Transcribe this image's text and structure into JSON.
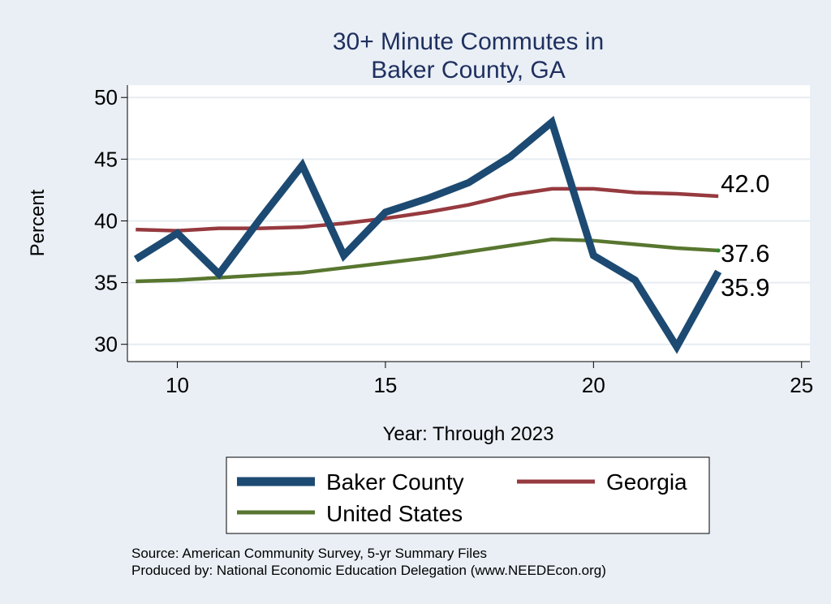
{
  "chart_data": {
    "type": "line",
    "title_lines": [
      "30+ Minute Commutes in",
      "Baker County, GA"
    ],
    "xlabel": "Year: Through 2023",
    "ylabel": "Percent",
    "xlim": [
      8.8,
      25.2
    ],
    "ylim": [
      28.6,
      51.0
    ],
    "xticks": [
      10,
      15,
      20,
      25
    ],
    "yticks": [
      30,
      35,
      40,
      45,
      50
    ],
    "grid": "horizontal",
    "series": [
      {
        "name": "Baker County",
        "color": "#1c4a72",
        "x": [
          9,
          10,
          11,
          12,
          13,
          14,
          15,
          16,
          17,
          18,
          19,
          20,
          21,
          22,
          23
        ],
        "y": [
          36.9,
          39.0,
          35.7,
          40.2,
          44.5,
          37.2,
          40.7,
          41.8,
          43.1,
          45.2,
          48.0,
          37.2,
          35.2,
          29.8,
          35.9
        ],
        "end_label": "35.9"
      },
      {
        "name": "Georgia",
        "color": "#963a3f",
        "x": [
          9,
          10,
          11,
          12,
          13,
          14,
          15,
          16,
          17,
          18,
          19,
          20,
          21,
          22,
          23
        ],
        "y": [
          39.3,
          39.2,
          39.4,
          39.4,
          39.5,
          39.8,
          40.2,
          40.7,
          41.3,
          42.1,
          42.6,
          42.6,
          42.3,
          42.2,
          42.0
        ],
        "end_label": "42.0"
      },
      {
        "name": "United States",
        "color": "#58762f",
        "x": [
          9,
          10,
          11,
          12,
          13,
          14,
          15,
          16,
          17,
          18,
          19,
          20,
          21,
          22,
          23
        ],
        "y": [
          35.1,
          35.2,
          35.4,
          35.6,
          35.8,
          36.2,
          36.6,
          37.0,
          37.5,
          38.0,
          38.5,
          38.4,
          38.1,
          37.8,
          37.6
        ],
        "end_label": "37.6"
      }
    ],
    "legend": {
      "placement": "bottom",
      "entries": [
        "Baker County",
        "Georgia",
        "United States"
      ]
    },
    "source_lines": [
      "Source: American Community Survey, 5-yr Summary Files",
      "Produced by: National Economic Education Delegation (www.NEEDEcon.org)"
    ]
  }
}
